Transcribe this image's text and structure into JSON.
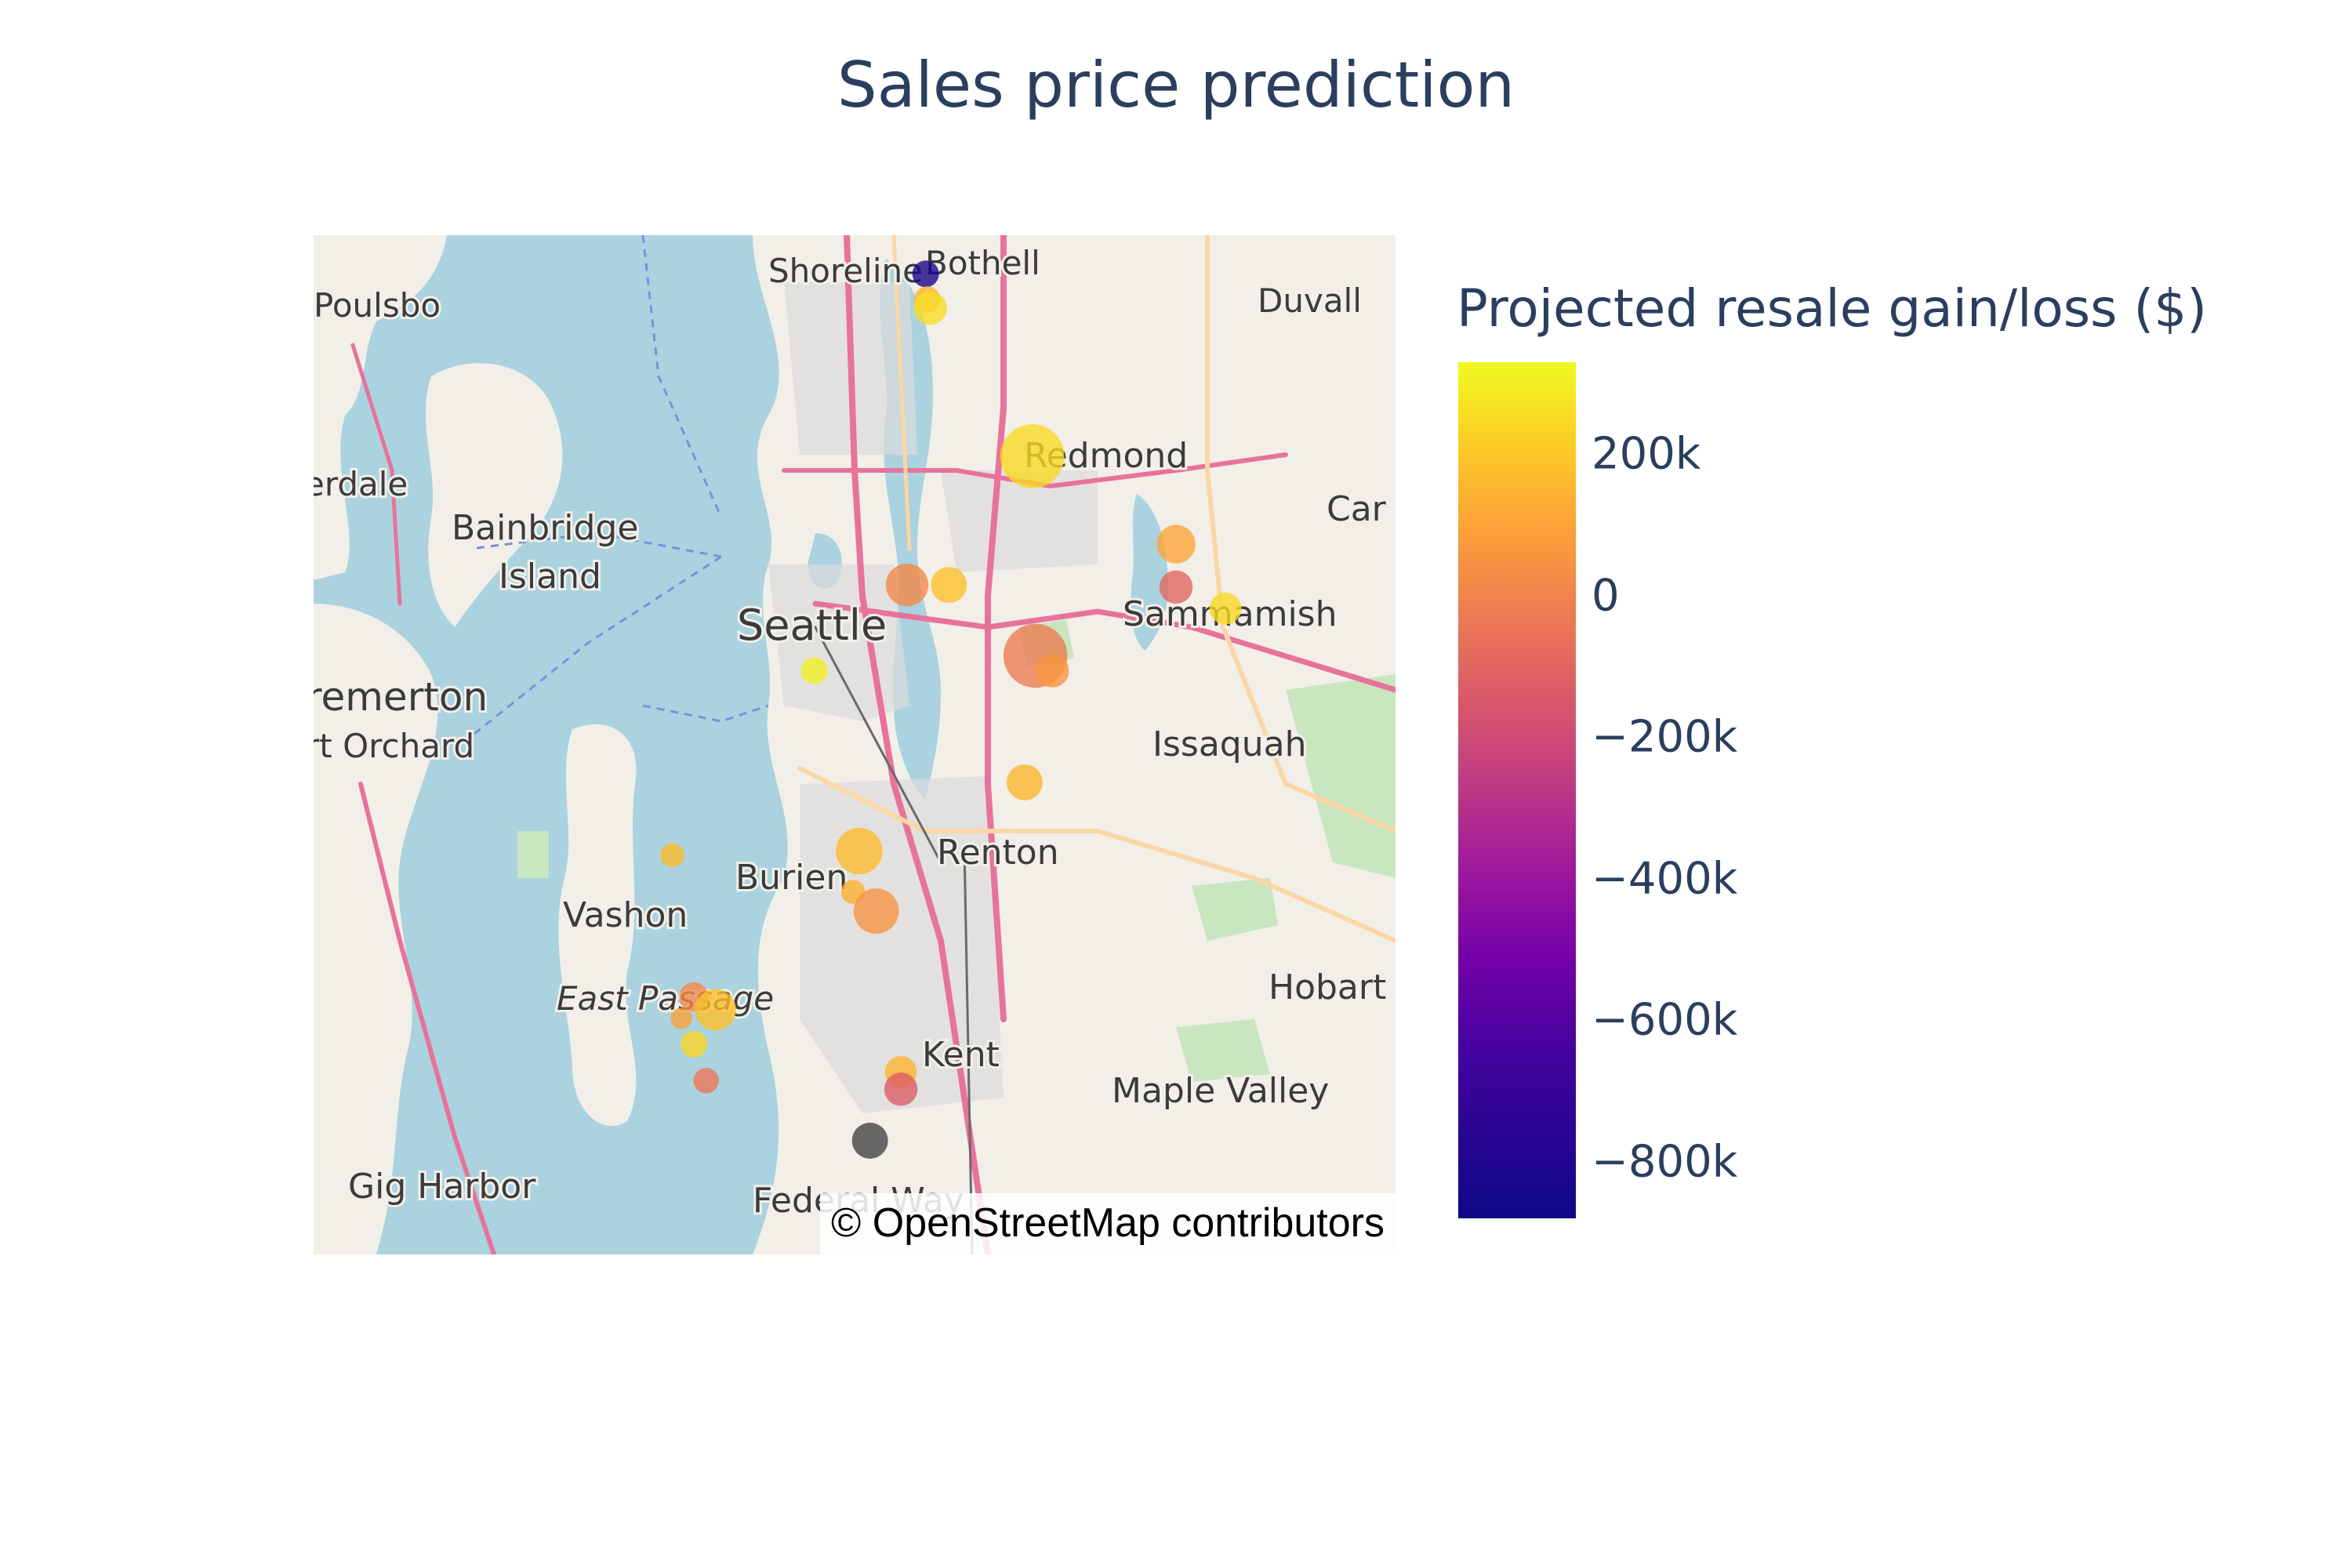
{
  "title": "Sales price prediction",
  "colorbar": {
    "title": "Projected resale gain/loss ($)",
    "ticks": [
      {
        "label": "200k",
        "value": 200000
      },
      {
        "label": "0",
        "value": 0
      },
      {
        "label": "−200k",
        "value": -200000
      },
      {
        "label": "−400k",
        "value": -400000
      },
      {
        "label": "−600k",
        "value": -600000
      },
      {
        "label": "−800k",
        "value": -800000
      }
    ],
    "range": [
      -880000,
      330000
    ],
    "colorscale": [
      "#0d0887",
      "#46039f",
      "#7201a8",
      "#9c179e",
      "#bd3786",
      "#d8576b",
      "#ed7953",
      "#fb9f3a",
      "#fdca26",
      "#f0f921"
    ]
  },
  "map": {
    "attribution": "© OpenStreetMap contributors",
    "places": [
      {
        "name": "Shoreline"
      },
      {
        "name": "Bothell"
      },
      {
        "name": "Poulsbo"
      },
      {
        "name": "Duvall"
      },
      {
        "name": "erdale"
      },
      {
        "name": "Redmond"
      },
      {
        "name": "Bainbridge"
      },
      {
        "name": "Island"
      },
      {
        "name": "Car"
      },
      {
        "name": "Seattle"
      },
      {
        "name": "Sammamish"
      },
      {
        "name": "remerton"
      },
      {
        "name": "rt Orchard"
      },
      {
        "name": "Issaquah"
      },
      {
        "name": "Renton"
      },
      {
        "name": "Burien"
      },
      {
        "name": "Vashon"
      },
      {
        "name": "East Passage"
      },
      {
        "name": "Hobart"
      },
      {
        "name": "Kent"
      },
      {
        "name": "Maple Valley"
      },
      {
        "name": "Gig Harbor"
      },
      {
        "name": "Federal Way"
      }
    ],
    "points": [
      {
        "lat": 47.757,
        "lon": -122.279,
        "value": -850000,
        "size": 40
      },
      {
        "lat": 47.745,
        "lon": -122.278,
        "value": 130000,
        "size": 40
      },
      {
        "lat": 47.741,
        "lon": -122.276,
        "value": 250000,
        "size": 50
      },
      {
        "lat": 47.672,
        "lon": -122.21,
        "value": 240000,
        "size": 96
      },
      {
        "lat": 47.631,
        "lon": -122.117,
        "value": 80000,
        "size": 58
      },
      {
        "lat": 47.611,
        "lon": -122.117,
        "value": -150000,
        "size": 50
      },
      {
        "lat": 47.601,
        "lon": -122.085,
        "value": 240000,
        "size": 48
      },
      {
        "lat": 47.612,
        "lon": -122.291,
        "value": -20000,
        "size": 64
      },
      {
        "lat": 47.612,
        "lon": -122.264,
        "value": 170000,
        "size": 54
      },
      {
        "lat": 47.579,
        "lon": -122.208,
        "value": -60000,
        "size": 96
      },
      {
        "lat": 47.572,
        "lon": -122.197,
        "value": 30000,
        "size": 50
      },
      {
        "lat": 47.572,
        "lon": -122.351,
        "value": 300000,
        "size": 40
      },
      {
        "lat": 47.52,
        "lon": -122.215,
        "value": 130000,
        "size": 54
      },
      {
        "lat": 47.488,
        "lon": -122.322,
        "value": 150000,
        "size": 70
      },
      {
        "lat": 47.486,
        "lon": -122.443,
        "value": 150000,
        "size": 36
      },
      {
        "lat": 47.469,
        "lon": -122.326,
        "value": 120000,
        "size": 36
      },
      {
        "lat": 47.46,
        "lon": -122.311,
        "value": 20000,
        "size": 68
      },
      {
        "lat": 47.42,
        "lon": -122.429,
        "value": -20000,
        "size": 44
      },
      {
        "lat": 47.414,
        "lon": -122.415,
        "value": 160000,
        "size": 62
      },
      {
        "lat": 47.41,
        "lon": -122.437,
        "value": 70000,
        "size": 32
      },
      {
        "lat": 47.398,
        "lon": -122.429,
        "value": 230000,
        "size": 40
      },
      {
        "lat": 47.385,
        "lon": -122.295,
        "value": 130000,
        "size": 48
      },
      {
        "lat": 47.377,
        "lon": -122.295,
        "value": -180000,
        "size": 50
      },
      {
        "lat": 47.381,
        "lon": -122.421,
        "value": -80000,
        "size": 38
      },
      {
        "lat": 47.353,
        "lon": -122.315,
        "value": null,
        "size": 54
      }
    ]
  }
}
